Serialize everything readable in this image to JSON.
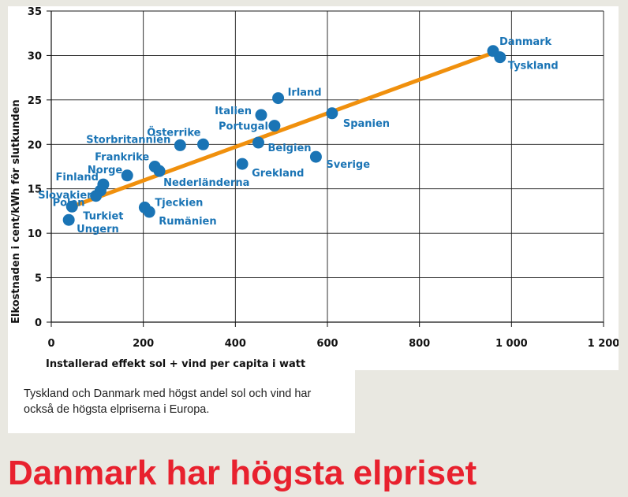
{
  "chart_data": {
    "type": "scatter",
    "title": "",
    "xlabel": "Installerad effekt sol + vind per capita i watt",
    "ylabel": "Elkostnaden i cent/kWh för slutkunden",
    "xlim": [
      0,
      1200
    ],
    "ylim": [
      0,
      35
    ],
    "x_ticks": [
      {
        "value": 0,
        "label": "0"
      },
      {
        "value": 200,
        "label": "200"
      },
      {
        "value": 400,
        "label": "400"
      },
      {
        "value": 600,
        "label": "600"
      },
      {
        "value": 800,
        "label": "800"
      },
      {
        "value": 1000,
        "label": "1 000"
      },
      {
        "value": 1200,
        "label": "1 200"
      }
    ],
    "y_ticks": [
      {
        "value": 0,
        "label": "0"
      },
      {
        "value": 5,
        "label": "5"
      },
      {
        "value": 10,
        "label": "10"
      },
      {
        "value": 15,
        "label": "15"
      },
      {
        "value": 20,
        "label": "20"
      },
      {
        "value": 25,
        "label": "25"
      },
      {
        "value": 30,
        "label": "30"
      },
      {
        "value": 35,
        "label": "35"
      }
    ],
    "grid": true,
    "trend_line": {
      "from": [
        45,
        13.0
      ],
      "to": [
        960,
        30.3
      ],
      "color": "#f0900d"
    },
    "point_color": "#1a74b5",
    "points": [
      {
        "label": "Danmark",
        "x": 960,
        "y": 30.5
      },
      {
        "label": "Tyskland",
        "x": 975,
        "y": 29.8
      },
      {
        "label": "Irland",
        "x": 493,
        "y": 25.2
      },
      {
        "label": "Italien",
        "x": 456,
        "y": 23.3
      },
      {
        "label": "Spanien",
        "x": 610,
        "y": 23.5
      },
      {
        "label": "Portugal",
        "x": 485,
        "y": 22.1
      },
      {
        "label": "Österrike",
        "x": 330,
        "y": 20.0
      },
      {
        "label": "Storbritannien",
        "x": 280,
        "y": 19.9
      },
      {
        "label": "Belgien",
        "x": 450,
        "y": 20.2
      },
      {
        "label": "Sverige",
        "x": 575,
        "y": 18.6
      },
      {
        "label": "Grekland",
        "x": 415,
        "y": 17.8
      },
      {
        "label": "Frankrike",
        "x": 225,
        "y": 17.5
      },
      {
        "label": "Nederländerna",
        "x": 235,
        "y": 17.0
      },
      {
        "label": "Norge",
        "x": 165,
        "y": 16.5
      },
      {
        "label": "Finland",
        "x": 113,
        "y": 15.5
      },
      {
        "label": "Slovakien",
        "x": 107,
        "y": 14.8
      },
      {
        "label": "Polen",
        "x": 97,
        "y": 14.2
      },
      {
        "label": "Turkiet",
        "x": 45,
        "y": 13.0
      },
      {
        "label": "Tjeckien",
        "x": 203,
        "y": 12.9
      },
      {
        "label": "Rumänien",
        "x": 213,
        "y": 12.4
      },
      {
        "label": "Ungern",
        "x": 38,
        "y": 11.5
      }
    ]
  },
  "caption": "Tyskland och Danmark med högst andel sol och vind har också de högsta elpriserna i Europa.",
  "headline": "Danmark har högsta elpriset"
}
